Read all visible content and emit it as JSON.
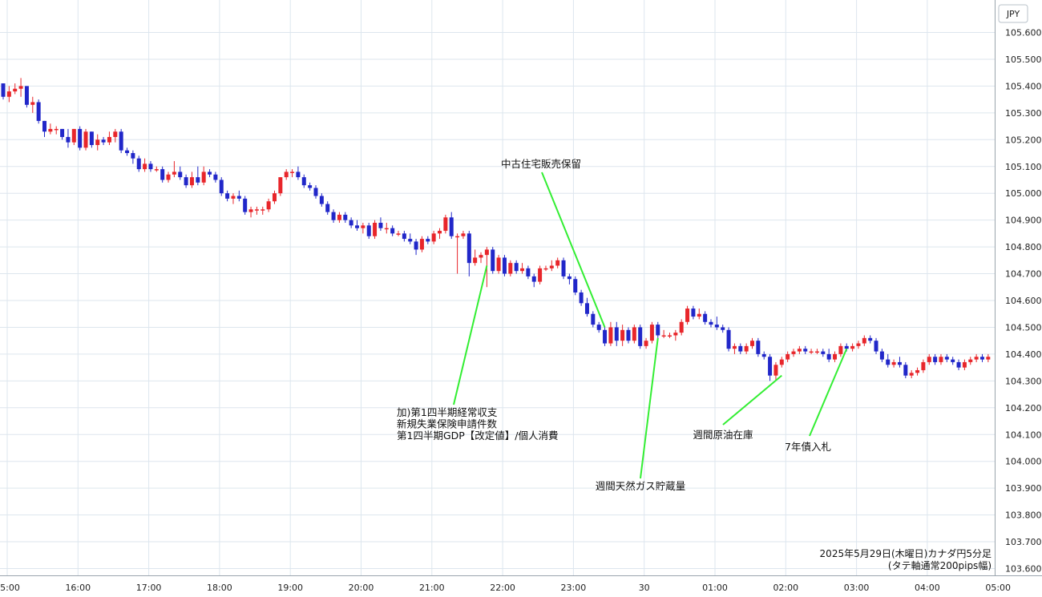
{
  "chart_data": {
    "type": "candlestick",
    "currency_label": "JPY",
    "caption_line1": "2025年5月29日(木曜日)カナダ円5分足",
    "caption_line2": "(タテ軸通常200pips幅)",
    "ylim": [
      103.6,
      105.65
    ],
    "yticks": [
      "105.600",
      "105.500",
      "105.400",
      "105.300",
      "105.200",
      "105.100",
      "105.000",
      "104.900",
      "104.800",
      "104.700",
      "104.600",
      "104.500",
      "104.400",
      "104.300",
      "104.200",
      "104.100",
      "104.000",
      "103.900",
      "103.800",
      "103.700",
      "103.600"
    ],
    "xticks": [
      "15:00",
      "16:00",
      "17:00",
      "18:00",
      "19:00",
      "20:00",
      "21:00",
      "22:00",
      "23:00",
      "30",
      "01:00",
      "02:00",
      "03:00",
      "04:00",
      "05:00"
    ],
    "grid": true,
    "colors": {
      "up": "#e8262b",
      "down": "#2127c9",
      "grid": "#dde6ee",
      "annotation_line": "#33ee33"
    },
    "candles": [
      {
        "o": 105.41,
        "h": 105.41,
        "l": 105.35,
        "c": 105.36
      },
      {
        "o": 105.36,
        "h": 105.4,
        "l": 105.34,
        "c": 105.38
      },
      {
        "o": 105.38,
        "h": 105.41,
        "l": 105.37,
        "c": 105.39
      },
      {
        "o": 105.39,
        "h": 105.43,
        "l": 105.36,
        "c": 105.4
      },
      {
        "o": 105.4,
        "h": 105.4,
        "l": 105.32,
        "c": 105.33
      },
      {
        "o": 105.33,
        "h": 105.36,
        "l": 105.3,
        "c": 105.34
      },
      {
        "o": 105.34,
        "h": 105.35,
        "l": 105.26,
        "c": 105.27
      },
      {
        "o": 105.27,
        "h": 105.27,
        "l": 105.21,
        "c": 105.23
      },
      {
        "o": 105.23,
        "h": 105.26,
        "l": 105.22,
        "c": 105.24
      },
      {
        "o": 105.24,
        "h": 105.25,
        "l": 105.22,
        "c": 105.24
      },
      {
        "o": 105.24,
        "h": 105.24,
        "l": 105.2,
        "c": 105.21
      },
      {
        "o": 105.21,
        "h": 105.24,
        "l": 105.17,
        "c": 105.19
      },
      {
        "o": 105.19,
        "h": 105.24,
        "l": 105.18,
        "c": 105.24
      },
      {
        "o": 105.24,
        "h": 105.25,
        "l": 105.16,
        "c": 105.17
      },
      {
        "o": 105.17,
        "h": 105.24,
        "l": 105.16,
        "c": 105.23
      },
      {
        "o": 105.23,
        "h": 105.23,
        "l": 105.17,
        "c": 105.18
      },
      {
        "o": 105.18,
        "h": 105.22,
        "l": 105.16,
        "c": 105.2
      },
      {
        "o": 105.2,
        "h": 105.21,
        "l": 105.18,
        "c": 105.19
      },
      {
        "o": 105.19,
        "h": 105.23,
        "l": 105.18,
        "c": 105.21
      },
      {
        "o": 105.21,
        "h": 105.24,
        "l": 105.19,
        "c": 105.23
      },
      {
        "o": 105.23,
        "h": 105.24,
        "l": 105.15,
        "c": 105.16
      },
      {
        "o": 105.16,
        "h": 105.17,
        "l": 105.14,
        "c": 105.15
      },
      {
        "o": 105.15,
        "h": 105.16,
        "l": 105.11,
        "c": 105.13
      },
      {
        "o": 105.13,
        "h": 105.14,
        "l": 105.08,
        "c": 105.09
      },
      {
        "o": 105.09,
        "h": 105.13,
        "l": 105.08,
        "c": 105.11
      },
      {
        "o": 105.11,
        "h": 105.12,
        "l": 105.08,
        "c": 105.09
      },
      {
        "o": 105.09,
        "h": 105.1,
        "l": 105.08,
        "c": 105.09
      },
      {
        "o": 105.09,
        "h": 105.1,
        "l": 105.04,
        "c": 105.05
      },
      {
        "o": 105.05,
        "h": 105.08,
        "l": 105.04,
        "c": 105.07
      },
      {
        "o": 105.07,
        "h": 105.12,
        "l": 105.06,
        "c": 105.08
      },
      {
        "o": 105.08,
        "h": 105.1,
        "l": 105.05,
        "c": 105.06
      },
      {
        "o": 105.06,
        "h": 105.07,
        "l": 105.02,
        "c": 105.03
      },
      {
        "o": 105.03,
        "h": 105.08,
        "l": 105.02,
        "c": 105.06
      },
      {
        "o": 105.06,
        "h": 105.1,
        "l": 105.03,
        "c": 105.04
      },
      {
        "o": 105.04,
        "h": 105.1,
        "l": 105.03,
        "c": 105.08
      },
      {
        "o": 105.08,
        "h": 105.09,
        "l": 105.06,
        "c": 105.07
      },
      {
        "o": 105.07,
        "h": 105.08,
        "l": 105.04,
        "c": 105.05
      },
      {
        "o": 105.05,
        "h": 105.06,
        "l": 104.99,
        "c": 105.0
      },
      {
        "o": 105.0,
        "h": 105.01,
        "l": 104.97,
        "c": 104.98
      },
      {
        "o": 104.98,
        "h": 105.0,
        "l": 104.96,
        "c": 104.99
      },
      {
        "o": 104.99,
        "h": 105.01,
        "l": 104.97,
        "c": 104.98
      },
      {
        "o": 104.98,
        "h": 104.99,
        "l": 104.92,
        "c": 104.93
      },
      {
        "o": 104.93,
        "h": 104.95,
        "l": 104.91,
        "c": 104.94
      },
      {
        "o": 104.94,
        "h": 104.95,
        "l": 104.92,
        "c": 104.94
      },
      {
        "o": 104.94,
        "h": 104.95,
        "l": 104.92,
        "c": 104.94
      },
      {
        "o": 104.94,
        "h": 104.98,
        "l": 104.93,
        "c": 104.97
      },
      {
        "o": 104.97,
        "h": 105.01,
        "l": 104.96,
        "c": 105.0
      },
      {
        "o": 105.0,
        "h": 105.06,
        "l": 104.99,
        "c": 105.06
      },
      {
        "o": 105.06,
        "h": 105.09,
        "l": 105.05,
        "c": 105.08
      },
      {
        "o": 105.08,
        "h": 105.09,
        "l": 105.06,
        "c": 105.08
      },
      {
        "o": 105.08,
        "h": 105.1,
        "l": 105.05,
        "c": 105.06
      },
      {
        "o": 105.06,
        "h": 105.07,
        "l": 105.02,
        "c": 105.03
      },
      {
        "o": 105.03,
        "h": 105.04,
        "l": 105.01,
        "c": 105.02
      },
      {
        "o": 105.02,
        "h": 105.03,
        "l": 104.98,
        "c": 104.99
      },
      {
        "o": 104.99,
        "h": 105.0,
        "l": 104.95,
        "c": 104.96
      },
      {
        "o": 104.96,
        "h": 104.97,
        "l": 104.92,
        "c": 104.93
      },
      {
        "o": 104.93,
        "h": 104.94,
        "l": 104.89,
        "c": 104.9
      },
      {
        "o": 104.9,
        "h": 104.93,
        "l": 104.89,
        "c": 104.92
      },
      {
        "o": 104.92,
        "h": 104.93,
        "l": 104.89,
        "c": 104.9
      },
      {
        "o": 104.9,
        "h": 104.91,
        "l": 104.87,
        "c": 104.88
      },
      {
        "o": 104.88,
        "h": 104.9,
        "l": 104.86,
        "c": 104.87
      },
      {
        "o": 104.87,
        "h": 104.89,
        "l": 104.85,
        "c": 104.88
      },
      {
        "o": 104.88,
        "h": 104.89,
        "l": 104.83,
        "c": 104.84
      },
      {
        "o": 104.84,
        "h": 104.9,
        "l": 104.83,
        "c": 104.89
      },
      {
        "o": 104.89,
        "h": 104.91,
        "l": 104.86,
        "c": 104.87
      },
      {
        "o": 104.87,
        "h": 104.89,
        "l": 104.85,
        "c": 104.87
      },
      {
        "o": 104.87,
        "h": 104.88,
        "l": 104.84,
        "c": 104.85
      },
      {
        "o": 104.85,
        "h": 104.86,
        "l": 104.84,
        "c": 104.85
      },
      {
        "o": 104.85,
        "h": 104.86,
        "l": 104.82,
        "c": 104.83
      },
      {
        "o": 104.83,
        "h": 104.85,
        "l": 104.81,
        "c": 104.82
      },
      {
        "o": 104.82,
        "h": 104.83,
        "l": 104.77,
        "c": 104.79
      },
      {
        "o": 104.79,
        "h": 104.84,
        "l": 104.78,
        "c": 104.83
      },
      {
        "o": 104.83,
        "h": 104.84,
        "l": 104.81,
        "c": 104.82
      },
      {
        "o": 104.82,
        "h": 104.86,
        "l": 104.81,
        "c": 104.85
      },
      {
        "o": 104.85,
        "h": 104.87,
        "l": 104.83,
        "c": 104.86
      },
      {
        "o": 104.86,
        "h": 104.92,
        "l": 104.85,
        "c": 104.91
      },
      {
        "o": 104.91,
        "h": 104.93,
        "l": 104.83,
        "c": 104.84
      },
      {
        "o": 104.84,
        "h": 104.85,
        "l": 104.7,
        "c": 104.84
      },
      {
        "o": 104.84,
        "h": 104.86,
        "l": 104.83,
        "c": 104.85
      },
      {
        "o": 104.85,
        "h": 104.86,
        "l": 104.69,
        "c": 104.74
      },
      {
        "o": 104.74,
        "h": 104.79,
        "l": 104.73,
        "c": 104.76
      },
      {
        "o": 104.76,
        "h": 104.78,
        "l": 104.74,
        "c": 104.77
      },
      {
        "o": 104.77,
        "h": 104.8,
        "l": 104.65,
        "c": 104.79
      },
      {
        "o": 104.79,
        "h": 104.8,
        "l": 104.7,
        "c": 104.71
      },
      {
        "o": 104.71,
        "h": 104.77,
        "l": 104.7,
        "c": 104.76
      },
      {
        "o": 104.76,
        "h": 104.77,
        "l": 104.69,
        "c": 104.7
      },
      {
        "o": 104.7,
        "h": 104.75,
        "l": 104.69,
        "c": 104.74
      },
      {
        "o": 104.74,
        "h": 104.75,
        "l": 104.7,
        "c": 104.71
      },
      {
        "o": 104.71,
        "h": 104.74,
        "l": 104.7,
        "c": 104.72
      },
      {
        "o": 104.72,
        "h": 104.73,
        "l": 104.68,
        "c": 104.69
      },
      {
        "o": 104.69,
        "h": 104.7,
        "l": 104.65,
        "c": 104.67
      },
      {
        "o": 104.67,
        "h": 104.73,
        "l": 104.66,
        "c": 104.72
      },
      {
        "o": 104.72,
        "h": 104.73,
        "l": 104.71,
        "c": 104.72
      },
      {
        "o": 104.72,
        "h": 104.75,
        "l": 104.71,
        "c": 104.73
      },
      {
        "o": 104.73,
        "h": 104.76,
        "l": 104.72,
        "c": 104.75
      },
      {
        "o": 104.75,
        "h": 104.76,
        "l": 104.68,
        "c": 104.69
      },
      {
        "o": 104.69,
        "h": 104.7,
        "l": 104.66,
        "c": 104.68
      },
      {
        "o": 104.68,
        "h": 104.69,
        "l": 104.62,
        "c": 104.63
      },
      {
        "o": 104.63,
        "h": 104.64,
        "l": 104.58,
        "c": 104.59
      },
      {
        "o": 104.59,
        "h": 104.61,
        "l": 104.54,
        "c": 104.55
      },
      {
        "o": 104.55,
        "h": 104.56,
        "l": 104.5,
        "c": 104.51
      },
      {
        "o": 104.51,
        "h": 104.52,
        "l": 104.48,
        "c": 104.49
      },
      {
        "o": 104.49,
        "h": 104.5,
        "l": 104.43,
        "c": 104.44
      },
      {
        "o": 104.44,
        "h": 104.52,
        "l": 104.43,
        "c": 104.5
      },
      {
        "o": 104.5,
        "h": 104.52,
        "l": 104.43,
        "c": 104.45
      },
      {
        "o": 104.45,
        "h": 104.51,
        "l": 104.43,
        "c": 104.49
      },
      {
        "o": 104.49,
        "h": 104.5,
        "l": 104.44,
        "c": 104.45
      },
      {
        "o": 104.45,
        "h": 104.51,
        "l": 104.44,
        "c": 104.5
      },
      {
        "o": 104.5,
        "h": 104.51,
        "l": 104.42,
        "c": 104.43
      },
      {
        "o": 104.43,
        "h": 104.46,
        "l": 104.42,
        "c": 104.45
      },
      {
        "o": 104.45,
        "h": 104.52,
        "l": 104.44,
        "c": 104.51
      },
      {
        "o": 104.51,
        "h": 104.52,
        "l": 104.46,
        "c": 104.47
      },
      {
        "o": 104.47,
        "h": 104.49,
        "l": 104.46,
        "c": 104.47
      },
      {
        "o": 104.47,
        "h": 104.48,
        "l": 104.46,
        "c": 104.47
      },
      {
        "o": 104.47,
        "h": 104.49,
        "l": 104.45,
        "c": 104.48
      },
      {
        "o": 104.48,
        "h": 104.53,
        "l": 104.47,
        "c": 104.52
      },
      {
        "o": 104.52,
        "h": 104.58,
        "l": 104.51,
        "c": 104.57
      },
      {
        "o": 104.57,
        "h": 104.58,
        "l": 104.53,
        "c": 104.54
      },
      {
        "o": 104.54,
        "h": 104.57,
        "l": 104.53,
        "c": 104.55
      },
      {
        "o": 104.55,
        "h": 104.56,
        "l": 104.51,
        "c": 104.52
      },
      {
        "o": 104.52,
        "h": 104.53,
        "l": 104.5,
        "c": 104.51
      },
      {
        "o": 104.51,
        "h": 104.54,
        "l": 104.49,
        "c": 104.5
      },
      {
        "o": 104.5,
        "h": 104.51,
        "l": 104.48,
        "c": 104.49
      },
      {
        "o": 104.49,
        "h": 104.5,
        "l": 104.41,
        "c": 104.42
      },
      {
        "o": 104.42,
        "h": 104.44,
        "l": 104.4,
        "c": 104.43
      },
      {
        "o": 104.43,
        "h": 104.44,
        "l": 104.4,
        "c": 104.41
      },
      {
        "o": 104.41,
        "h": 104.44,
        "l": 104.4,
        "c": 104.43
      },
      {
        "o": 104.43,
        "h": 104.46,
        "l": 104.42,
        "c": 104.45
      },
      {
        "o": 104.45,
        "h": 104.46,
        "l": 104.39,
        "c": 104.4
      },
      {
        "o": 104.4,
        "h": 104.41,
        "l": 104.38,
        "c": 104.39
      },
      {
        "o": 104.39,
        "h": 104.4,
        "l": 104.3,
        "c": 104.32
      },
      {
        "o": 104.32,
        "h": 104.37,
        "l": 104.3,
        "c": 104.36
      },
      {
        "o": 104.36,
        "h": 104.39,
        "l": 104.35,
        "c": 104.38
      },
      {
        "o": 104.38,
        "h": 104.41,
        "l": 104.37,
        "c": 104.4
      },
      {
        "o": 104.4,
        "h": 104.42,
        "l": 104.39,
        "c": 104.41
      },
      {
        "o": 104.41,
        "h": 104.43,
        "l": 104.4,
        "c": 104.42
      },
      {
        "o": 104.42,
        "h": 104.43,
        "l": 104.4,
        "c": 104.41
      },
      {
        "o": 104.41,
        "h": 104.42,
        "l": 104.4,
        "c": 104.41
      },
      {
        "o": 104.41,
        "h": 104.42,
        "l": 104.4,
        "c": 104.41
      },
      {
        "o": 104.41,
        "h": 104.42,
        "l": 104.39,
        "c": 104.4
      },
      {
        "o": 104.4,
        "h": 104.42,
        "l": 104.37,
        "c": 104.38
      },
      {
        "o": 104.38,
        "h": 104.41,
        "l": 104.37,
        "c": 104.4
      },
      {
        "o": 104.4,
        "h": 104.44,
        "l": 104.39,
        "c": 104.43
      },
      {
        "o": 104.43,
        "h": 104.44,
        "l": 104.41,
        "c": 104.42
      },
      {
        "o": 104.42,
        "h": 104.44,
        "l": 104.41,
        "c": 104.43
      },
      {
        "o": 104.43,
        "h": 104.45,
        "l": 104.42,
        "c": 104.44
      },
      {
        "o": 104.44,
        "h": 104.47,
        "l": 104.43,
        "c": 104.46
      },
      {
        "o": 104.46,
        "h": 104.47,
        "l": 104.44,
        "c": 104.45
      },
      {
        "o": 104.45,
        "h": 104.46,
        "l": 104.4,
        "c": 104.41
      },
      {
        "o": 104.41,
        "h": 104.42,
        "l": 104.37,
        "c": 104.38
      },
      {
        "o": 104.38,
        "h": 104.4,
        "l": 104.35,
        "c": 104.36
      },
      {
        "o": 104.36,
        "h": 104.38,
        "l": 104.35,
        "c": 104.37
      },
      {
        "o": 104.37,
        "h": 104.39,
        "l": 104.35,
        "c": 104.36
      },
      {
        "o": 104.36,
        "h": 104.37,
        "l": 104.31,
        "c": 104.32
      },
      {
        "o": 104.32,
        "h": 104.34,
        "l": 104.31,
        "c": 104.33
      },
      {
        "o": 104.33,
        "h": 104.35,
        "l": 104.32,
        "c": 104.34
      },
      {
        "o": 104.34,
        "h": 104.38,
        "l": 104.33,
        "c": 104.37
      },
      {
        "o": 104.37,
        "h": 104.4,
        "l": 104.36,
        "c": 104.39
      },
      {
        "o": 104.39,
        "h": 104.4,
        "l": 104.36,
        "c": 104.37
      },
      {
        "o": 104.37,
        "h": 104.4,
        "l": 104.36,
        "c": 104.39
      },
      {
        "o": 104.39,
        "h": 104.4,
        "l": 104.37,
        "c": 104.38
      },
      {
        "o": 104.38,
        "h": 104.39,
        "l": 104.36,
        "c": 104.37
      },
      {
        "o": 104.37,
        "h": 104.38,
        "l": 104.34,
        "c": 104.35
      },
      {
        "o": 104.35,
        "h": 104.38,
        "l": 104.34,
        "c": 104.37
      },
      {
        "o": 104.37,
        "h": 104.39,
        "l": 104.36,
        "c": 104.38
      },
      {
        "o": 104.38,
        "h": 104.4,
        "l": 104.37,
        "c": 104.39
      },
      {
        "o": 104.39,
        "h": 104.4,
        "l": 104.37,
        "c": 104.38
      },
      {
        "o": 104.38,
        "h": 104.4,
        "l": 104.37,
        "c": 104.39
      },
      {
        "o": 104.39,
        "h": 104.4,
        "l": 104.37,
        "c": 104.38
      },
      {
        "o": 104.38,
        "h": 104.39,
        "l": 104.37,
        "c": 104.38
      },
      {
        "o": 104.38,
        "h": 104.4,
        "l": 104.37,
        "c": 104.39
      },
      {
        "o": 104.39,
        "h": 104.4,
        "l": 104.37,
        "c": 104.38
      },
      {
        "o": 104.38,
        "h": 104.39,
        "l": 104.36,
        "c": 104.37
      },
      {
        "o": 104.37,
        "h": 104.38,
        "l": 104.35,
        "c": 104.36
      },
      {
        "o": 104.36,
        "h": 104.39,
        "l": 104.35,
        "c": 104.38
      }
    ],
    "annotations": [
      {
        "lines": [
          "加)第1四半期経常収支",
          "新規失業保険申請件数",
          "第1四半期GDP【改定値】/個人消費"
        ],
        "candle": 82,
        "price": 104.73
      },
      {
        "lines": [
          "中古住宅販売保留"
        ],
        "candle": 102,
        "price": 104.5
      },
      {
        "lines": [
          "週間天然ガス貯蔵量"
        ],
        "candle": 111,
        "price": 104.46
      },
      {
        "lines": [
          "週間原油在庫"
        ],
        "candle": 132,
        "price": 104.32
      },
      {
        "lines": [
          "7年債入札"
        ],
        "candle": 143,
        "price": 104.42
      }
    ]
  }
}
